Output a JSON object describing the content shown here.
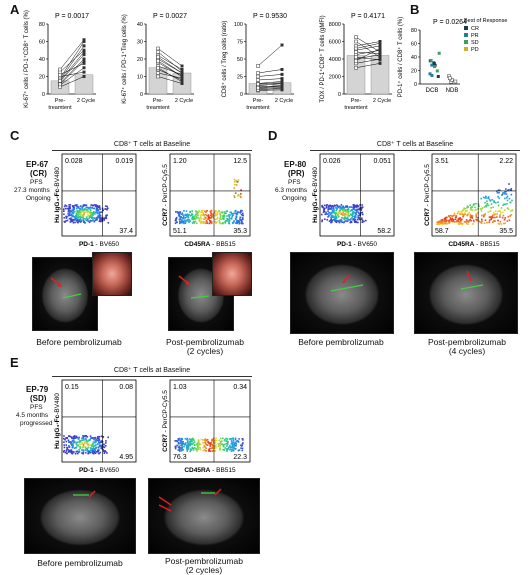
{
  "panels": {
    "A": "A",
    "B": "B",
    "C": "C",
    "D": "D",
    "E": "E"
  },
  "panel_a": {
    "charts": [
      {
        "p": "P = 0.0017",
        "ylabel": "Ki-67⁺ cells / PD-1⁺CD8⁺ T cells (%)",
        "yticks": [
          "0",
          "20",
          "40",
          "60",
          "80"
        ],
        "x": [
          "Pre-treamtent",
          "2 Cycle"
        ],
        "pre": [
          10,
          12,
          14,
          16,
          18,
          20,
          22,
          25,
          28,
          8,
          11,
          15
        ],
        "post": [
          30,
          40,
          45,
          55,
          60,
          25,
          35,
          50,
          62,
          20,
          38,
          48
        ],
        "bar_pre": 15,
        "bar_post": 22,
        "ymax": 80
      },
      {
        "p": "P = 0.0027",
        "ylabel": "Ki-67⁺ cells / PD-1⁺Treg cells (%)",
        "yticks": [
          "0",
          "10",
          "20",
          "30",
          "40"
        ],
        "x": [
          "Pre-treamtent",
          "2 Cycle"
        ],
        "pre": [
          10,
          14,
          18,
          20,
          22,
          12,
          16,
          24,
          26,
          15,
          19,
          21
        ],
        "post": [
          6,
          8,
          10,
          12,
          14,
          9,
          11,
          13,
          16,
          7,
          10,
          12
        ],
        "bar_pre": 15,
        "bar_post": 12,
        "ymax": 40
      },
      {
        "p": "P = 0.9530",
        "ylabel": "CD8⁺ cells / Treg cells (ratio)",
        "yticks": [
          "0",
          "25",
          "50",
          "75",
          "100"
        ],
        "x": [
          "Pre-treamtent",
          "2 Cycle"
        ],
        "pre": [
          5,
          8,
          10,
          12,
          15,
          20,
          25,
          30,
          40,
          6,
          9,
          14
        ],
        "post": [
          6,
          9,
          12,
          15,
          18,
          22,
          28,
          35,
          70,
          8,
          11,
          16
        ],
        "bar_pre": 15,
        "bar_post": 16,
        "ymax": 100
      },
      {
        "p": "P = 0.4171",
        "ylabel": "TOX / PD-1⁺CD8⁺ T cells (gMFI)",
        "yticks": [
          "0",
          "2000",
          "4000",
          "6000",
          "8000"
        ],
        "x": [
          "Pre-treamtent",
          "2 Cycle"
        ],
        "pre": [
          3000,
          3500,
          4000,
          4500,
          5000,
          5500,
          6000,
          6500,
          3800,
          4200,
          4800,
          5200
        ],
        "post": [
          3500,
          4000,
          4500,
          5000,
          5500,
          6000,
          4200,
          4800,
          5200,
          3900,
          4600,
          5800
        ],
        "bar_pre": 4400,
        "bar_post": 4400,
        "ymax": 8000
      }
    ]
  },
  "panel_b": {
    "p": "P = 0.0264",
    "ylabel": "PD-1⁺ cells / CD8⁺ T cells (%)",
    "yticks": [
      "0",
      "20",
      "40",
      "60",
      "80"
    ],
    "groups": [
      "DCB",
      "NDB"
    ],
    "legend_title": "Best of Response",
    "legend": [
      {
        "label": "CR",
        "color": "#1a3a5a"
      },
      {
        "label": "PR",
        "color": "#2a7a9a"
      },
      {
        "label": "SD",
        "color": "#3aa05a"
      },
      {
        "label": "PD",
        "color": "#d0b020"
      }
    ]
  },
  "panel_c": {
    "title": "CD8⁺ T cells at Baseline",
    "patient": "EP-67",
    "response": "(CR)",
    "pfs": [
      "PFS",
      "27.3 months",
      "Ongoing"
    ],
    "plot1": {
      "q_tl": "0.028",
      "q_tr": "0.019",
      "q_br": "37.4",
      "xlab_bold": "PD-1",
      "xlab": " - BV650",
      "ylab_bold": "Hu IgG₄-Fc",
      "ylab": "-BV480"
    },
    "plot2": {
      "q_tl": "1.20",
      "q_tr": "12.5",
      "q_bl": "51.1",
      "q_br": "35.3",
      "xlab_bold": "CD45RA",
      "xlab": " - BB515",
      "ylab_bold": "CCR7",
      "ylab": " - PerCP-Cy5.5"
    },
    "before": "Before pembrolizumab",
    "after": [
      "Post-pembrolizumab",
      "(2 cycles)"
    ]
  },
  "panel_d": {
    "title": "CD8⁺ T cells at Baseline",
    "patient": "EP-80",
    "response": "(PR)",
    "pfs": [
      "PFS",
      "6.3 months",
      "Ongoing"
    ],
    "plot1": {
      "q_tl": "0.026",
      "q_tr": "0.051",
      "q_br": "58.2",
      "xlab_bold": "PD-1",
      "xlab": " - BV650",
      "ylab_bold": "Hu IgG₄-Fc",
      "ylab": "-BV480"
    },
    "plot2": {
      "q_tl": "3.51",
      "q_tr": "2.22",
      "q_bl": "58.7",
      "q_br": "35.5",
      "xlab_bold": "CD45RA",
      "xlab": " - BB515",
      "ylab_bold": "CCR7",
      "ylab": " - PerCP-Cy5.5"
    },
    "before": "Before pembrolizumab",
    "after": [
      "Post-pembrolizumab",
      "(4 cycles)"
    ]
  },
  "panel_e": {
    "title": "CD8⁺ T cells at Baseline",
    "patient": "EP-79",
    "response": "(SD)",
    "pfs": [
      "PFS",
      "4.5 months",
      "progressed"
    ],
    "plot1": {
      "q_tl": "0.15",
      "q_tr": "0.08",
      "q_br": "4.95",
      "xlab_bold": "PD-1",
      "xlab": " - BV650",
      "ylab_bold": "Hu IgG₄-Fc",
      "ylab": "-BV480"
    },
    "plot2": {
      "q_tl": "1.03",
      "q_tr": "0.34",
      "q_bl": "76.3",
      "q_br": "22.3",
      "xlab_bold": "CD45RA",
      "xlab": " - BB515",
      "ylab_bold": "CCR7",
      "ylab": " - PerCP-Cy5.5"
    },
    "before": "Before pembrolizumab",
    "after": [
      "Post-pembrolizumab",
      "(2 cycles)"
    ]
  },
  "colors": {
    "bar": "#d4d4d4",
    "point": "#333333",
    "line": "#000000",
    "arrow": "#e02020",
    "measure": "#40d040"
  }
}
